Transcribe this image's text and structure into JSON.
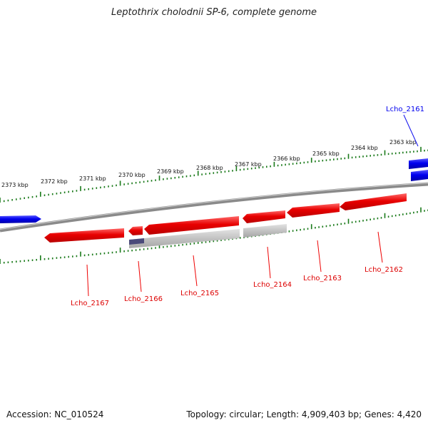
{
  "title": "Leptothrix cholodnii SP-6, complete genome",
  "footer": {
    "accession": "Accession: NC_010524",
    "summary": "Topology: circular; Length: 4,909,403 bp; Genes: 4,420"
  },
  "colors": {
    "forward": "#0000ee",
    "reverse": "#ee0000",
    "pseudogene": "#b8b8b8",
    "tick": "#1a7a1a",
    "backbone": "#888888"
  },
  "scale": {
    "unit": "kbp",
    "labels": [
      "2373 kbp",
      "2372 kbp",
      "2371 kbp",
      "2370 kbp",
      "2369 kbp",
      "2368 kbp",
      "2367 kbp",
      "2366 kbp",
      "2365 kbp",
      "2364 kbp",
      "2363 kbp"
    ]
  },
  "genes": [
    {
      "label": "Lcho_2161",
      "strand": "forward",
      "icon": "arrow-right"
    },
    {
      "label": "Lcho_2162",
      "strand": "reverse",
      "icon": "arrow-left"
    },
    {
      "label": "Lcho_2163",
      "strand": "reverse",
      "icon": "arrow-left"
    },
    {
      "label": "Lcho_2164",
      "strand": "reverse",
      "icon": "arrow-left"
    },
    {
      "label": "Lcho_2165",
      "strand": "reverse",
      "icon": "arrow-left"
    },
    {
      "label": "Lcho_2166",
      "strand": "reverse",
      "icon": "arrow-left"
    },
    {
      "label": "Lcho_2167",
      "strand": "reverse",
      "icon": "arrow-left"
    }
  ]
}
